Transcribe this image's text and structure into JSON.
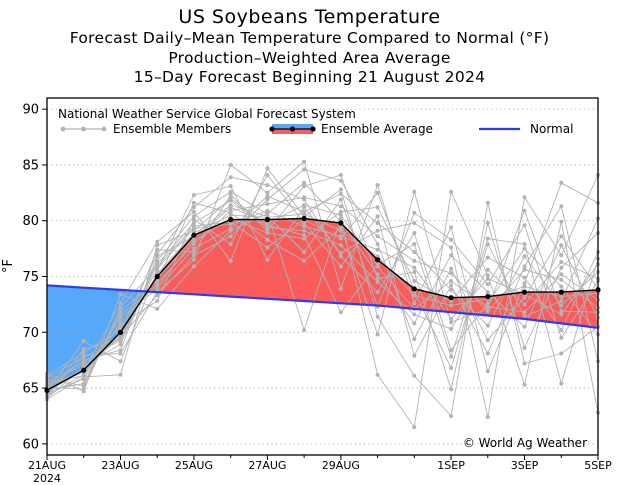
{
  "titles": {
    "line1": "US Soybeans Temperature",
    "line2": "Forecast Daily–Mean Temperature Compared to Normal (°F)",
    "line3": "Production–Weighted Area Average",
    "line4": "15–Day Forecast Beginning 21 August 2024"
  },
  "legend": {
    "source": "National Weather Service Global Forecast System",
    "members": "Ensemble Members",
    "average": "Ensemble Average",
    "normal": "Normal"
  },
  "copyright": "© World Ag Weather",
  "colors": {
    "above": "#fa5c5c",
    "below": "#56a8fa",
    "normal": "#2d3cf0",
    "members": "#b3b3b3",
    "average": "#000000"
  },
  "chart_data": {
    "type": "line",
    "title": "US Soybeans Temperature",
    "ylabel": "°F",
    "xlabel": "",
    "ylim": [
      59,
      91
    ],
    "xlim": [
      0,
      15
    ],
    "grid": true,
    "yticks": [
      60,
      65,
      70,
      75,
      80,
      85,
      90
    ],
    "xticks": [
      {
        "x": 0,
        "label": "21AUG",
        "sub": "2024"
      },
      {
        "x": 2,
        "label": "23AUG"
      },
      {
        "x": 4,
        "label": "25AUG"
      },
      {
        "x": 6,
        "label": "27AUG"
      },
      {
        "x": 8,
        "label": "29AUG"
      },
      {
        "x": 11,
        "label": "1SEP"
      },
      {
        "x": 13,
        "label": "3SEP"
      },
      {
        "x": 15,
        "label": "5SEP"
      }
    ],
    "x": [
      0,
      1,
      2,
      3,
      4,
      5,
      6,
      7,
      8,
      9,
      10,
      11,
      12,
      13,
      14,
      15
    ],
    "series": [
      {
        "name": "Ensemble Average",
        "values": [
          64.8,
          66.6,
          70.0,
          75.0,
          78.7,
          80.1,
          80.1,
          80.2,
          79.8,
          76.5,
          73.9,
          73.1,
          73.2,
          73.6,
          73.6,
          73.8
        ]
      },
      {
        "name": "Normal",
        "values": [
          74.2,
          74.0,
          73.8,
          73.6,
          73.4,
          73.2,
          73.0,
          72.8,
          72.6,
          72.4,
          72.1,
          71.8,
          71.5,
          71.2,
          70.8,
          70.4
        ]
      }
    ],
    "members": [
      [
        65.2,
        66.4,
        69.8,
        75.2,
        78.9,
        80.5,
        80.3,
        80.6,
        79.1,
        76.8,
        73.3,
        72.4,
        73.0,
        74.1,
        73.2,
        73.5
      ],
      [
        64.1,
        66.9,
        70.5,
        74.8,
        78.4,
        81.2,
        79.8,
        81.4,
        80.5,
        75.9,
        72.1,
        74.6,
        72.3,
        71.8,
        75.2,
        72.9
      ],
      [
        65.6,
        67.3,
        69.5,
        75.7,
        79.3,
        79.7,
        80.9,
        79.5,
        78.6,
        77.4,
        75.8,
        71.2,
        74.8,
        73.4,
        71.6,
        76.1
      ],
      [
        64.5,
        65.8,
        70.9,
        74.4,
        77.9,
        80.9,
        81.5,
        82.1,
        81.3,
        78.6,
        76.4,
        75.3,
        71.9,
        75.6,
        74.7,
        72.2
      ],
      [
        65.9,
        67.8,
        69.2,
        76.1,
        79.8,
        81.8,
        79.4,
        79.1,
        77.8,
        74.5,
        71.6,
        70.3,
        75.6,
        72.5,
        76.3,
        74.8
      ],
      [
        64.3,
        66.2,
        71.3,
        73.9,
        77.5,
        79.3,
        82.2,
        80.8,
        82.4,
        79.8,
        77.2,
        73.8,
        70.6,
        76.8,
        72.4,
        75.4
      ],
      [
        65.4,
        67.1,
        68.9,
        76.4,
        80.4,
        82.6,
        80.6,
        83.4,
        79.9,
        75.2,
        70.8,
        76.9,
        73.6,
        70.5,
        77.8,
        71.3
      ],
      [
        64.8,
        65.4,
        71.6,
        74.1,
        78.2,
        80.2,
        78.9,
        78.4,
        80.8,
        81.2,
        74.6,
        72.8,
        76.7,
        74.9,
        70.2,
        77.2
      ],
      [
        66.1,
        68.2,
        70.2,
        77.0,
        81.2,
        83.9,
        83.2,
        81.9,
        76.8,
        73.6,
        78.9,
        68.4,
        72.6,
        77.5,
        74.1,
        69.8
      ],
      [
        64.6,
        66.7,
        69.6,
        73.3,
        76.9,
        78.6,
        81.9,
        84.6,
        83.6,
        77.9,
        69.4,
        75.7,
        69.3,
        73.1,
        78.6,
        73.9
      ],
      [
        65.1,
        64.9,
        72.2,
        75.9,
        79.5,
        79.9,
        77.6,
        80.1,
        78.4,
        82.5,
        73.7,
        66.8,
        77.9,
        71.4,
        72.8,
        80.2
      ],
      [
        64.9,
        67.5,
        68.4,
        76.8,
        78.6,
        81.4,
        80.4,
        77.2,
        81.9,
        72.3,
        80.7,
        78.3,
        74.3,
        79.6,
        69.5,
        74.6
      ],
      [
        65.5,
        66.1,
        70.7,
        72.8,
        80.1,
        77.9,
        84.1,
        79.8,
        75.9,
        80.4,
        67.9,
        74.2,
        68.1,
        75.9,
        81.3,
        67.4
      ],
      [
        64.2,
        68.5,
        69.3,
        77.4,
        77.2,
        82.3,
        79.1,
        83.1,
        84.1,
        74.8,
        75.4,
        64.9,
        79.8,
        68.6,
        75.8,
        78.9
      ],
      [
        65.8,
        65.2,
        71.9,
        74.6,
        81.6,
        80.7,
        78.3,
        76.4,
        79.4,
        69.8,
        82.6,
        70.9,
        72.1,
        80.9,
        71.9,
        71.8
      ],
      [
        64.4,
        67.9,
        68.1,
        73.6,
        76.5,
        85.0,
        82.5,
        85.3,
        73.9,
        83.2,
        72.6,
        79.4,
        66.5,
        74.4,
        83.4,
        81.6
      ],
      [
        65.3,
        66.5,
        72.6,
        78.1,
        80.8,
        76.4,
        84.7,
        80.4,
        82.8,
        71.4,
        66.1,
        62.5,
        81.6,
        67.2,
        68.1,
        70.5
      ],
      [
        64.7,
        69.2,
        67.4,
        75.5,
        82.3,
        83.1,
        76.5,
        81.2,
        77.1,
        79.1,
        79.8,
        77.6,
        62.4,
        82.1,
        76.9,
        84.1
      ],
      [
        66.3,
        64.7,
        73.4,
        72.1,
        75.9,
        79.1,
        80.7,
        70.2,
        80.2,
        66.2,
        61.5,
        82.6,
        75.1,
        65.3,
        79.9,
        62.8
      ],
      [
        64.0,
        66.0,
        66.2,
        77.8,
        79.1,
        82.0,
        79.6,
        78.7,
        71.8,
        76.1,
        77.9,
        67.8,
        78.4,
        77.9,
        65.4,
        76.6
      ]
    ]
  }
}
